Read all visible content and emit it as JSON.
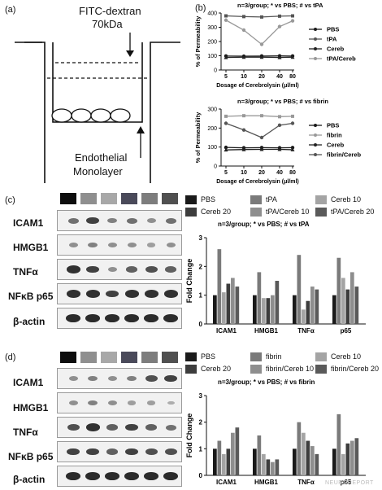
{
  "panel_a": {
    "label": "(a)",
    "tracer_line1": "FITC-dextran",
    "tracer_line2": "70kDa",
    "cells_line1": "Endothelial",
    "cells_line2": "Monolayer"
  },
  "panel_b": {
    "label": "(b)",
    "chart1": {
      "title": "n=3/group; * vs PBS; # vs tPA",
      "ylabel": "% of Permeability",
      "xlabel": "Dosage of Cerebrolysin (μl/ml)",
      "legend": [
        "PBS",
        "tPA",
        "Cereb",
        "tPA/Cereb"
      ]
    },
    "chart2": {
      "title": "n=3/group; * vs PBS; # vs fibrin",
      "ylabel": "% of Permeability",
      "xlabel": "Dosage of Cerebrolysin (μl/ml)",
      "legend": [
        "PBS",
        "fibrin",
        "Cereb",
        "fibrin/Cereb"
      ]
    }
  },
  "panel_c": {
    "label": "(c)",
    "blot_labels": [
      "ICAM1",
      "HMGB1",
      "TNFα",
      "NFκB p65",
      "β-actin"
    ],
    "legend": [
      "PBS",
      "tPA",
      "Cereb 10",
      "Cereb 20",
      "tPA/Cereb 10",
      "tPA/Cereb 20"
    ],
    "bar_title": "n=3/group; * vs PBS; # vs tPA",
    "ylabel": "Fold Change"
  },
  "panel_d": {
    "label": "(d)",
    "blot_labels": [
      "ICAM1",
      "HMGB1",
      "TNFα",
      "NFκB p65",
      "β-actin"
    ],
    "legend": [
      "PBS",
      "fibrin",
      "Cereb 10",
      "Cereb 20",
      "fibrin/Cereb 10",
      "fibrin/Cereb 20"
    ],
    "bar_title": "n=3/group; * vs PBS; # vs fibrin",
    "ylabel": "Fold Change"
  },
  "watermark": "NEUROREPORT",
  "colors": {
    "pbs": "#1a1a1a",
    "treat": "#7a7a7a",
    "c10": "#a4a4a4",
    "c20": "#3d3d3d",
    "combo10": "#8e8e8e",
    "combo20": "#5a5a5a"
  },
  "chart_data": [
    {
      "type": "line",
      "x": [
        5,
        10,
        20,
        40,
        80
      ],
      "xlabel": "Dosage of Cerebrolysin (μl/ml)",
      "ylabel": "% of Permeability",
      "ylim": [
        0,
        400
      ],
      "yticks": [
        0,
        100,
        200,
        300,
        400
      ],
      "series": [
        {
          "name": "PBS",
          "values": [
            98,
            97,
            98,
            99,
            98
          ]
        },
        {
          "name": "tPA",
          "values": [
            380,
            375,
            372,
            378,
            380
          ]
        },
        {
          "name": "Cereb",
          "values": [
            88,
            90,
            90,
            88,
            90
          ]
        },
        {
          "name": "tPA/Cereb",
          "values": [
            350,
            280,
            180,
            305,
            345
          ]
        }
      ]
    },
    {
      "type": "line",
      "x": [
        5,
        10,
        20,
        40,
        80
      ],
      "xlabel": "Dosage of Cerebrolysin (μl/ml)",
      "ylabel": "% of Permeability",
      "ylim": [
        0,
        300
      ],
      "yticks": [
        0,
        100,
        200,
        300
      ],
      "series": [
        {
          "name": "PBS",
          "values": [
            98,
            96,
            97,
            96,
            97
          ]
        },
        {
          "name": "fibrin",
          "values": [
            262,
            265,
            265,
            260,
            262
          ]
        },
        {
          "name": "Cereb",
          "values": [
            85,
            87,
            88,
            88,
            86
          ]
        },
        {
          "name": "fibrin/Cereb",
          "values": [
            225,
            190,
            150,
            215,
            225
          ]
        }
      ]
    },
    {
      "type": "bar",
      "categories": [
        "ICAM1",
        "HMGB1",
        "TNFα",
        "p65"
      ],
      "ylabel": "Fold Change",
      "ylim": [
        0,
        3
      ],
      "yticks": [
        0,
        1,
        2,
        3
      ],
      "series": [
        {
          "name": "PBS",
          "values": [
            1.0,
            1.0,
            1.0,
            1.0
          ]
        },
        {
          "name": "tPA",
          "values": [
            2.6,
            1.8,
            2.4,
            2.3
          ]
        },
        {
          "name": "Cereb 10",
          "values": [
            1.1,
            0.9,
            0.5,
            1.6
          ]
        },
        {
          "name": "Cereb 20",
          "values": [
            1.4,
            0.9,
            0.8,
            1.2
          ]
        },
        {
          "name": "tPA/Cereb 10",
          "values": [
            1.6,
            1.0,
            1.3,
            1.8
          ]
        },
        {
          "name": "tPA/Cereb 20",
          "values": [
            1.3,
            1.5,
            1.2,
            1.3
          ]
        }
      ]
    },
    {
      "type": "bar",
      "categories": [
        "ICAM1",
        "HMGB1",
        "TNFα",
        "p65"
      ],
      "ylabel": "Fold Change",
      "ylim": [
        0,
        3
      ],
      "yticks": [
        0,
        1,
        2,
        3
      ],
      "series": [
        {
          "name": "PBS",
          "values": [
            1.0,
            1.0,
            1.0,
            1.0
          ]
        },
        {
          "name": "fibrin",
          "values": [
            1.3,
            1.5,
            2.0,
            2.3
          ]
        },
        {
          "name": "Cereb 10",
          "values": [
            0.8,
            0.8,
            1.6,
            0.8
          ]
        },
        {
          "name": "Cereb 20",
          "values": [
            1.0,
            0.6,
            1.3,
            1.2
          ]
        },
        {
          "name": "fibrin/Cereb 10",
          "values": [
            1.6,
            0.5,
            1.1,
            1.3
          ]
        },
        {
          "name": "fibrin/Cereb 20",
          "values": [
            1.8,
            0.6,
            0.8,
            1.4
          ]
        }
      ]
    }
  ]
}
